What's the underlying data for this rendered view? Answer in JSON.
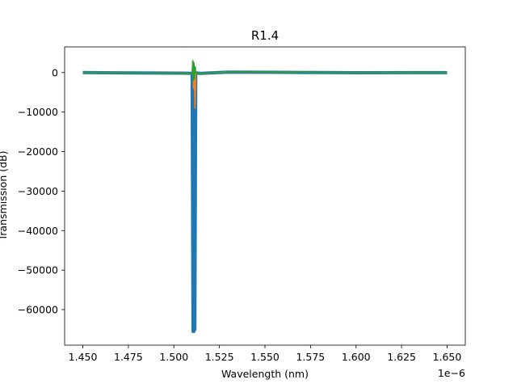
{
  "chart_data": {
    "type": "line",
    "title": "R1.4",
    "xlabel": "Wavelength (nm)",
    "ylabel": "Transmission (dB)",
    "x_offset_label": "1e−6",
    "xlim": [
      1.44e-06,
      1.66e-06
    ],
    "ylim": [
      -69000,
      6500
    ],
    "x_ticks": [
      1.45e-06,
      1.475e-06,
      1.5e-06,
      1.525e-06,
      1.55e-06,
      1.575e-06,
      1.6e-06,
      1.625e-06,
      1.65e-06
    ],
    "x_tick_labels": [
      "1.450",
      "1.475",
      "1.500",
      "1.525",
      "1.550",
      "1.575",
      "1.600",
      "1.625",
      "1.650"
    ],
    "y_ticks": [
      0,
      -10000,
      -20000,
      -30000,
      -40000,
      -50000,
      -60000
    ],
    "y_tick_labels": [
      "0",
      "−10000",
      "−20000",
      "−30000",
      "−40000",
      "−50000",
      "−60000"
    ],
    "grid": false,
    "series": [
      {
        "color": "#1f77b4",
        "x": [
          1.45e-06,
          1.48e-06,
          1.505e-06,
          1.51e-06,
          1.5105e-06,
          1.5108e-06,
          1.511e-06,
          1.5112e-06,
          1.5115e-06,
          1.512e-06,
          1.515e-06,
          1.53e-06,
          1.56e-06,
          1.6e-06,
          1.65e-06
        ],
        "y": [
          0,
          -100,
          -150,
          -200,
          -65500,
          -800,
          -65500,
          -500,
          -65000,
          -100,
          -200,
          100,
          50,
          -50,
          -20
        ]
      },
      {
        "color": "#ff7f0e",
        "x": [
          1.45e-06,
          1.48e-06,
          1.505e-06,
          1.51e-06,
          1.5104e-06,
          1.5108e-06,
          1.5112e-06,
          1.5116e-06,
          1.512e-06,
          1.515e-06,
          1.53e-06,
          1.56e-06,
          1.6e-06,
          1.65e-06
        ],
        "y": [
          0,
          -100,
          -150,
          -200,
          3000,
          -4000,
          1500,
          -9000,
          -100,
          -200,
          100,
          50,
          -50,
          -20
        ]
      },
      {
        "color": "#2ca02c",
        "x": [
          1.45e-06,
          1.48e-06,
          1.505e-06,
          1.51e-06,
          1.5104e-06,
          1.5107e-06,
          1.511e-06,
          1.5113e-06,
          1.5117e-06,
          1.512e-06,
          1.515e-06,
          1.53e-06,
          1.56e-06,
          1.6e-06,
          1.65e-06
        ],
        "y": [
          0,
          -100,
          -150,
          -200,
          3000,
          -2000,
          2500,
          -1500,
          1500,
          -100,
          -200,
          100,
          50,
          -50,
          -20
        ]
      }
    ]
  }
}
